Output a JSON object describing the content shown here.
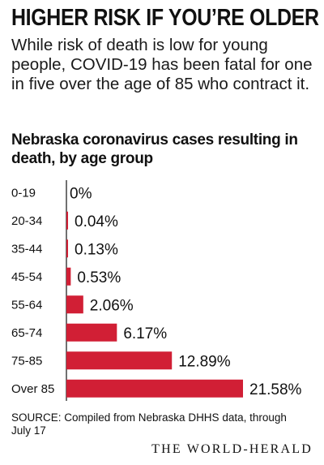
{
  "headline": "HIGHER RISK IF YOU’RE OLDER",
  "dek": "While risk of death is low for young people, COVID-19 has been fatal for one in five over the age of 85 who contract it.",
  "source": "SOURCE: Compiled from Nebraska DHHS data, through July 17",
  "logo": "THE WORLD-HERALD",
  "colors": {
    "bar": "#d11f35",
    "text": "#111111"
  },
  "chart_data": {
    "type": "bar",
    "orientation": "horizontal",
    "title": "Nebraska coronavirus cases resulting in death, by age group",
    "categories": [
      "0-19",
      "20-34",
      "35-44",
      "45-54",
      "55-64",
      "65-74",
      "75-85",
      "Over 85"
    ],
    "values": [
      0,
      0.04,
      0.13,
      0.53,
      2.06,
      6.17,
      12.89,
      21.58
    ],
    "value_labels": [
      "0%",
      "0.04%",
      "0.13%",
      "0.53%",
      "2.06%",
      "6.17%",
      "12.89%",
      "21.58%"
    ],
    "xlim": [
      0,
      21.58
    ],
    "grid": false,
    "legend": false
  }
}
